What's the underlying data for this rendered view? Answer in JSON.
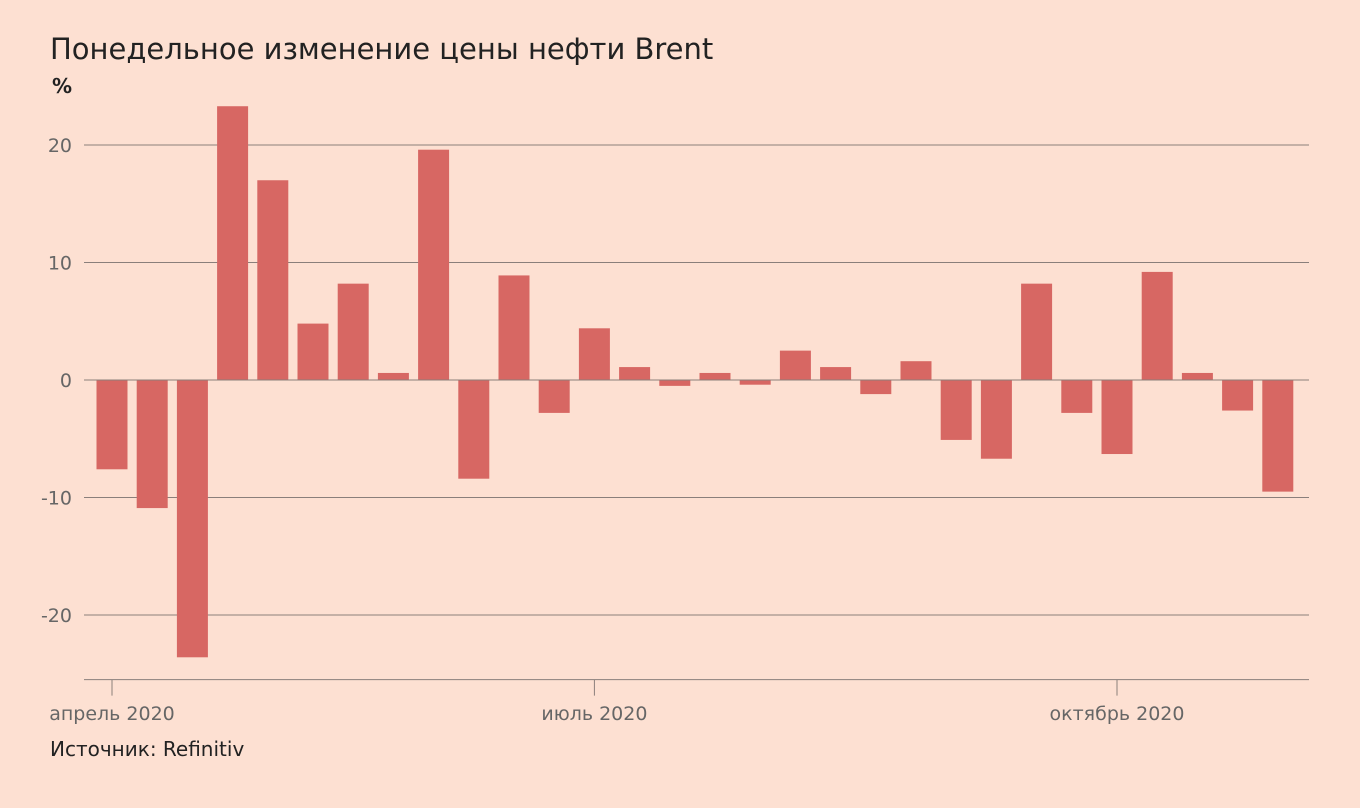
{
  "colors": {
    "background": "#fde0d2",
    "bar": "#d76763",
    "grid": "#8a7f7b"
  },
  "chart_data": {
    "type": "bar",
    "title": "Понедельное изменение цены нефти Brent",
    "ylabel": "%",
    "xlabel": "",
    "source": "Источник: Refinitiv",
    "ylim": [
      -25.5,
      25
    ],
    "yticks": [
      20,
      10,
      0,
      -10,
      -20
    ],
    "grid": true,
    "x_tick_labels": [
      {
        "label": "апрель 2020",
        "index": 0
      },
      {
        "label": "июль 2020",
        "index": 12
      },
      {
        "label": "октябрь 2020",
        "index": 25
      }
    ],
    "values": [
      -7.6,
      -10.9,
      -23.6,
      23.3,
      17.0,
      4.8,
      8.2,
      0.6,
      19.6,
      -8.4,
      8.9,
      -2.8,
      4.4,
      1.1,
      -0.5,
      0.6,
      -0.4,
      2.5,
      1.1,
      -1.2,
      1.6,
      -5.1,
      -6.7,
      8.2,
      -2.8,
      -6.3,
      9.2,
      0.6,
      -2.6,
      -9.5
    ]
  }
}
